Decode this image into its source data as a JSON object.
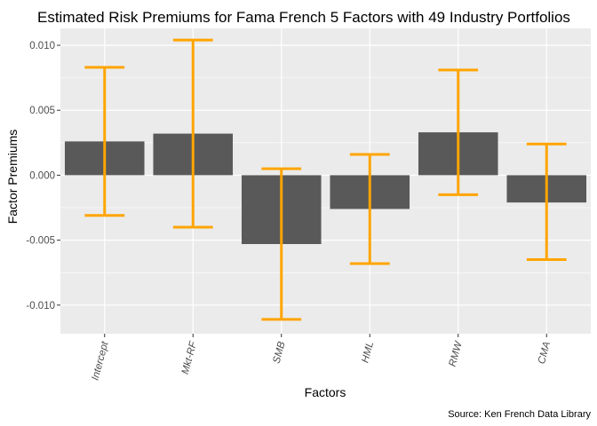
{
  "chart_data": {
    "type": "bar",
    "title": "Estimated Risk Premiums for Fama French 5 Factors with 49 Industry Portfolios",
    "xlabel": "Factors",
    "ylabel": "Factor Premiums",
    "caption": "Source: Ken French Data Library",
    "categories": [
      "Intercept",
      "Mkt-RF",
      "SMB",
      "HML",
      "RMW",
      "CMA"
    ],
    "values": [
      0.0026,
      0.0032,
      -0.0053,
      -0.0026,
      0.0033,
      -0.0021
    ],
    "error_low": [
      -0.0031,
      -0.004,
      -0.0111,
      -0.0068,
      -0.0015,
      -0.0065
    ],
    "error_high": [
      0.0083,
      0.0104,
      0.0005,
      0.0016,
      0.0081,
      0.0024
    ],
    "ylim": [
      -0.0122,
      0.0113
    ],
    "yticks": [
      -0.01,
      -0.005,
      0.0,
      0.005,
      0.01
    ],
    "ytick_labels": [
      "-0.010",
      "-0.005",
      "0.000",
      "0.005",
      "0.010"
    ],
    "grid": true,
    "colors": {
      "bar": "#595959",
      "errorbar": "#ffa500",
      "panel": "#ebebeb",
      "grid": "#ffffff"
    }
  }
}
